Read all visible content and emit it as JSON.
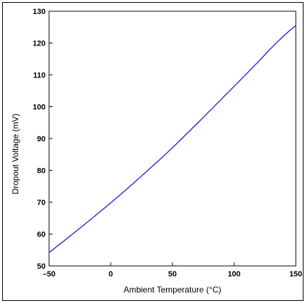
{
  "chart_data": {
    "type": "line",
    "title": "",
    "xlabel": "Ambient Temperature (°C)",
    "ylabel": "Dropout Voltage (mV)",
    "xlim": [
      -50,
      150
    ],
    "ylim": [
      50,
      130
    ],
    "x_ticks": [
      -50,
      0,
      50,
      100,
      150
    ],
    "x_tick_labels": [
      "–50",
      "0",
      "50",
      "100",
      "150"
    ],
    "y_ticks": [
      50,
      60,
      70,
      80,
      90,
      100,
      110,
      120,
      130
    ],
    "y_tick_labels": [
      "50",
      "60",
      "70",
      "80",
      "90",
      "100",
      "110",
      "120",
      "130"
    ],
    "grid": false,
    "series": [
      {
        "color": "#1a1acc",
        "x": [
          -50,
          -40,
          -30,
          -20,
          -10,
          0,
          10,
          20,
          30,
          40,
          50,
          60,
          70,
          80,
          90,
          100,
          110,
          120,
          130,
          140,
          145,
          150
        ],
        "y": [
          54.2,
          57.2,
          60.3,
          63.4,
          66.6,
          69.8,
          73.1,
          76.5,
          80.0,
          83.5,
          87.1,
          90.9,
          94.7,
          98.6,
          102.5,
          106.4,
          110.3,
          114.3,
          118.4,
          122.2,
          123.9,
          125.5
        ]
      }
    ]
  }
}
